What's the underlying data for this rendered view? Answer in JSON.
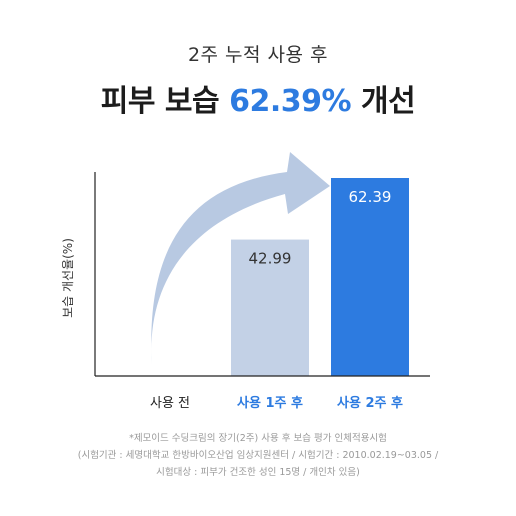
{
  "header": {
    "subtitle": "2주 누적 사용 후",
    "title_prefix": "피부 보습",
    "title_highlight": "62.39%",
    "title_suffix": "개선"
  },
  "colors": {
    "accent": "#2d7be0",
    "bar_light": "#c3d1e6",
    "bar_dark": "#2d7be0",
    "arrow": "#b8c9e2"
  },
  "chart_data": {
    "type": "bar",
    "categories": [
      "사용 전",
      "사용 1주 후",
      "사용 2주 후"
    ],
    "values": [
      null,
      42.99,
      62.39
    ],
    "value_labels": [
      "",
      "42.99",
      "62.39"
    ],
    "ylabel": "보습 개선율(%)",
    "xlabel": "",
    "title": "",
    "grid": false,
    "highlighted_categories": [
      "사용 1주 후",
      "사용 2주 후"
    ]
  },
  "footnotes": [
    "*제모이드 수딩크림의 장기(2주) 사용 후 보습 평가 인체적용시험",
    "(시험기관 : 세명대학교 한방바이오산업 임상지원센터 / 시험기간 : 2010.02.19~03.05 /",
    "시험대상 : 피부가 건조한 성인 15명 / 개인차 있음)"
  ]
}
